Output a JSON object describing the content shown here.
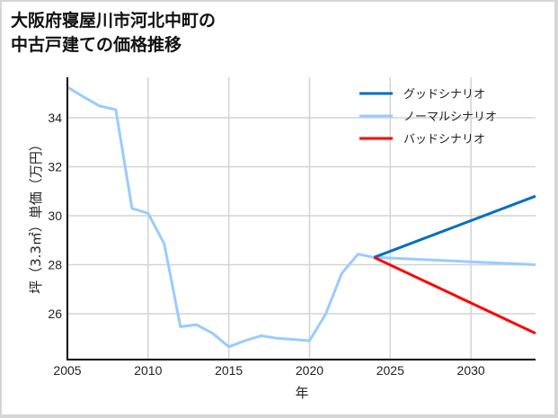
{
  "title_line1": "大阪府寝屋川市河北中町の",
  "title_line2": "中古戸建ての価格推移",
  "chart_data": {
    "type": "line",
    "title": "大阪府寝屋川市河北中町の中古戸建ての価格推移",
    "xlabel": "年",
    "ylabel": "坪（3.3㎡）単価（万円）",
    "xlim": [
      2005,
      2034
    ],
    "ylim": [
      24.2,
      35.4
    ],
    "x_ticks": [
      "2005",
      "2010",
      "2015",
      "2020",
      "2025",
      "2030"
    ],
    "y_ticks": [
      "26",
      "28",
      "30",
      "32",
      "34"
    ],
    "grid": true,
    "legend_position": "upper right",
    "series": [
      {
        "name": "グッドシナリオ",
        "color": "#0070c0",
        "x": [
          2024,
          2034
        ],
        "values": [
          28.3,
          30.8
        ]
      },
      {
        "name": "ノーマルシナリオ",
        "color": "#99ccff",
        "x": [
          2005,
          2006,
          2007,
          2008,
          2009,
          2010,
          2011,
          2012,
          2013,
          2014,
          2015,
          2016,
          2017,
          2018,
          2019,
          2020,
          2021,
          2022,
          2023,
          2024,
          2034
        ],
        "values": [
          35.25,
          34.85,
          34.48,
          34.33,
          30.3,
          30.1,
          28.85,
          25.47,
          25.55,
          25.2,
          24.65,
          24.9,
          25.1,
          25.0,
          24.95,
          24.9,
          25.98,
          27.65,
          28.43,
          28.3,
          28.0
        ]
      },
      {
        "name": "バッドシナリオ",
        "color": "#ff0000",
        "x": [
          2024,
          2034
        ],
        "values": [
          28.3,
          25.2
        ]
      }
    ]
  }
}
